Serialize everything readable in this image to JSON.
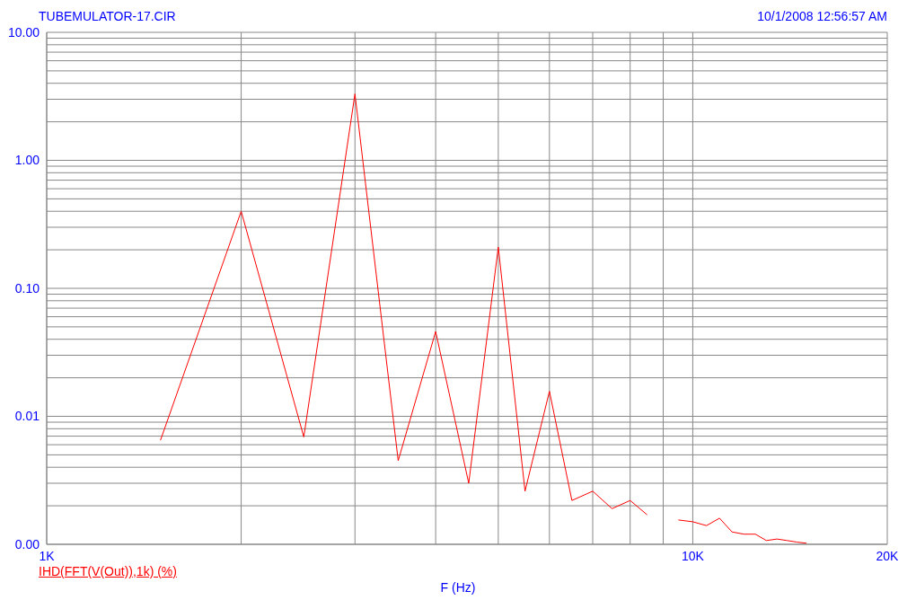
{
  "chart_data": {
    "type": "line",
    "xlabel": "F (Hz)",
    "annotations": [
      "TUBEMULATOR-17.CIR",
      "10/1/2008 12:56:57 AM"
    ],
    "x": [
      1500,
      2000,
      2500,
      3000,
      3500,
      4000,
      4500,
      5000,
      5500,
      6000,
      6500,
      7000,
      7500,
      8000,
      8500,
      9000,
      9500,
      10000,
      10500,
      11000,
      11500,
      12000,
      12500,
      13000,
      13500,
      14000,
      14500,
      15000
    ],
    "series": [
      {
        "name": "IHD(FFT(V(Out)),1k) (%)",
        "color": "#ff0000",
        "values": [
          0.0065,
          0.4,
          0.0069,
          3.3,
          0.0045,
          0.046,
          0.003,
          0.21,
          0.0026,
          0.0157,
          0.0022,
          0.0026,
          0.0019,
          0.0022,
          0.0017,
          null,
          0.00155,
          0.0015,
          0.0014,
          0.0016,
          0.00125,
          0.0012,
          0.0012,
          0.00107,
          0.0011,
          0.00107,
          0.00104,
          0.00102
        ]
      }
    ],
    "log": "xy",
    "xlim": [
      1000,
      20000
    ],
    "ylim": [
      0.001,
      10
    ],
    "xticks": [
      {
        "value": 1000,
        "label": "1K"
      },
      {
        "value": 2000,
        "label": null
      },
      {
        "value": 3000,
        "label": null
      },
      {
        "value": 4000,
        "label": null
      },
      {
        "value": 5000,
        "label": null
      },
      {
        "value": 6000,
        "label": null
      },
      {
        "value": 7000,
        "label": null
      },
      {
        "value": 8000,
        "label": null
      },
      {
        "value": 9000,
        "label": null
      },
      {
        "value": 10000,
        "label": "10K"
      },
      {
        "value": 20000,
        "label": "20K"
      }
    ],
    "yticks": [
      {
        "value": 0.001,
        "label": "0.00"
      },
      {
        "value": 0.002,
        "label": null
      },
      {
        "value": 0.003,
        "label": null
      },
      {
        "value": 0.004,
        "label": null
      },
      {
        "value": 0.005,
        "label": null
      },
      {
        "value": 0.006,
        "label": null
      },
      {
        "value": 0.007,
        "label": null
      },
      {
        "value": 0.008,
        "label": null
      },
      {
        "value": 0.009,
        "label": null
      },
      {
        "value": 0.01,
        "label": "0.01"
      },
      {
        "value": 0.02,
        "label": null
      },
      {
        "value": 0.03,
        "label": null
      },
      {
        "value": 0.04,
        "label": null
      },
      {
        "value": 0.05,
        "label": null
      },
      {
        "value": 0.06,
        "label": null
      },
      {
        "value": 0.07,
        "label": null
      },
      {
        "value": 0.08,
        "label": null
      },
      {
        "value": 0.09,
        "label": null
      },
      {
        "value": 0.1,
        "label": "0.10"
      },
      {
        "value": 0.2,
        "label": null
      },
      {
        "value": 0.3,
        "label": null
      },
      {
        "value": 0.4,
        "label": null
      },
      {
        "value": 0.5,
        "label": null
      },
      {
        "value": 0.6,
        "label": null
      },
      {
        "value": 0.7,
        "label": null
      },
      {
        "value": 0.8,
        "label": null
      },
      {
        "value": 0.9,
        "label": null
      },
      {
        "value": 1,
        "label": "1.00"
      },
      {
        "value": 2,
        "label": null
      },
      {
        "value": 3,
        "label": null
      },
      {
        "value": 4,
        "label": null
      },
      {
        "value": 5,
        "label": null
      },
      {
        "value": 6,
        "label": null
      },
      {
        "value": 7,
        "label": null
      },
      {
        "value": 8,
        "label": null
      },
      {
        "value": 9,
        "label": null
      },
      {
        "value": 10,
        "label": "10.00"
      }
    ],
    "grid": true,
    "legend": "bottom left",
    "marker": "none",
    "line_style": "solid"
  }
}
